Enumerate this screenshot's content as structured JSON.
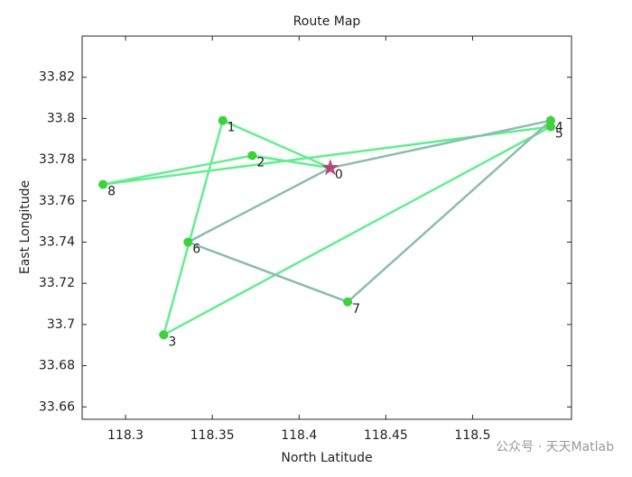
{
  "chart_data": {
    "type": "route",
    "title": "Route Map",
    "x_label": "North Latitude",
    "y_label": "East Longitude",
    "xlim": [
      118.275,
      118.557
    ],
    "ylim": [
      33.654,
      33.84
    ],
    "xticks": [
      118.3,
      118.35,
      118.4,
      118.45,
      118.5
    ],
    "yticks": [
      33.66,
      33.68,
      33.7,
      33.72,
      33.74,
      33.76,
      33.78,
      33.8,
      33.82
    ],
    "points": {
      "color": "#3cd23c",
      "depot_color": "#b0306a",
      "labels": [
        "0",
        "1",
        "2",
        "3",
        "4",
        "5",
        "6",
        "7",
        "8"
      ],
      "x": [
        118.418,
        118.356,
        118.373,
        118.322,
        118.545,
        118.545,
        118.336,
        118.428,
        118.287
      ],
      "y": [
        33.776,
        33.799,
        33.782,
        33.695,
        33.799,
        33.796,
        33.74,
        33.711,
        33.768
      ]
    },
    "routes": [
      {
        "color": "#62ee8e",
        "x": [
          118.418,
          118.356,
          118.322,
          118.545,
          118.287,
          118.373,
          118.418
        ],
        "y": [
          33.776,
          33.799,
          33.695,
          33.796,
          33.768,
          33.782,
          33.776
        ]
      },
      {
        "color": "#8cbcb0",
        "x": [
          118.418,
          118.545,
          118.428,
          118.336,
          118.418
        ],
        "y": [
          33.776,
          33.799,
          33.711,
          33.74,
          33.776
        ]
      }
    ],
    "watermark": "公众号 · 天天Matlab"
  }
}
